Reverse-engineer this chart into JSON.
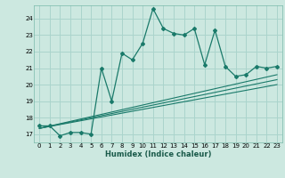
{
  "title": "",
  "xlabel": "Humidex (Indice chaleur)",
  "bg_color": "#cce8e0",
  "grid_color": "#aad4cc",
  "line_color": "#1a7a6a",
  "xlim": [
    -0.5,
    23.5
  ],
  "ylim": [
    16.5,
    24.8
  ],
  "yticks": [
    17,
    18,
    19,
    20,
    21,
    22,
    23,
    24
  ],
  "xticks": [
    0,
    1,
    2,
    3,
    4,
    5,
    6,
    7,
    8,
    9,
    10,
    11,
    12,
    13,
    14,
    15,
    16,
    17,
    18,
    19,
    20,
    21,
    22,
    23
  ],
  "curve_x": [
    0,
    1,
    2,
    3,
    4,
    5,
    6,
    7,
    8,
    9,
    10,
    11,
    12,
    13,
    14,
    15,
    16,
    17,
    18,
    19,
    20,
    21,
    22,
    23
  ],
  "curve_y": [
    17.5,
    17.5,
    16.9,
    17.1,
    17.1,
    17.0,
    21.0,
    19.0,
    21.9,
    21.5,
    22.5,
    24.6,
    23.4,
    23.1,
    23.0,
    23.4,
    21.2,
    23.3,
    21.1,
    20.5,
    20.6,
    21.1,
    21.0,
    21.1
  ],
  "line1_x": [
    0,
    23
  ],
  "line1_y": [
    17.35,
    20.0
  ],
  "line2_x": [
    0,
    23
  ],
  "line2_y": [
    17.35,
    20.3
  ],
  "line3_x": [
    0,
    23
  ],
  "line3_y": [
    17.35,
    20.6
  ]
}
